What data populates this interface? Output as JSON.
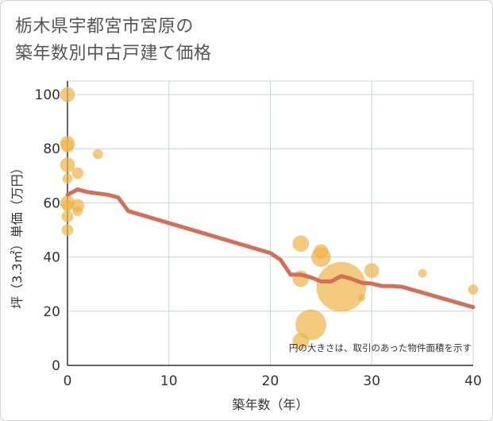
{
  "title_line1": "栃木県宇都宮市宮原の",
  "title_line2": "築年数別中古戸建て価格",
  "colors": {
    "bubble": "#f0b54e",
    "line": "#d4705a",
    "grid": "#c8d4dc",
    "text": "#333333",
    "title": "#555555"
  },
  "chart_data": {
    "type": "scatter",
    "title": "栃木県宇都宮市宮原の築年数別中古戸建て価格",
    "xlabel": "築年数（年）",
    "ylabel": "坪（3.3㎡）単価（万円）",
    "xlim": [
      0,
      40
    ],
    "ylim": [
      0,
      105
    ],
    "xticks": [
      0,
      10,
      20,
      30,
      40
    ],
    "yticks": [
      0,
      20,
      40,
      60,
      80,
      100
    ],
    "note": "円の大きさは、取引のあった物件面積を示す",
    "points": [
      {
        "x": 0,
        "y": 100,
        "size": 9
      },
      {
        "x": 0,
        "y": 82,
        "size": 9
      },
      {
        "x": 0,
        "y": 81,
        "size": 8
      },
      {
        "x": 0,
        "y": 74,
        "size": 9
      },
      {
        "x": 0,
        "y": 69,
        "size": 6
      },
      {
        "x": 0,
        "y": 60,
        "size": 9
      },
      {
        "x": 0,
        "y": 59,
        "size": 7
      },
      {
        "x": 0,
        "y": 55,
        "size": 7
      },
      {
        "x": 0,
        "y": 50,
        "size": 7
      },
      {
        "x": 1,
        "y": 71,
        "size": 7
      },
      {
        "x": 1,
        "y": 59,
        "size": 8
      },
      {
        "x": 1,
        "y": 57,
        "size": 6
      },
      {
        "x": 3,
        "y": 78,
        "size": 6
      },
      {
        "x": 23,
        "y": 45,
        "size": 10
      },
      {
        "x": 23,
        "y": 32,
        "size": 10
      },
      {
        "x": 23,
        "y": 9,
        "size": 10
      },
      {
        "x": 24,
        "y": 15,
        "size": 19
      },
      {
        "x": 25,
        "y": 42,
        "size": 9
      },
      {
        "x": 25,
        "y": 40,
        "size": 12
      },
      {
        "x": 27,
        "y": 29,
        "size": 31
      },
      {
        "x": 29,
        "y": 25,
        "size": 4
      },
      {
        "x": 30,
        "y": 35,
        "size": 9
      },
      {
        "x": 35,
        "y": 34,
        "size": 5
      },
      {
        "x": 40,
        "y": 28,
        "size": 6
      }
    ],
    "series": [
      {
        "name": "trend",
        "x": [
          0,
          1,
          2,
          3,
          4,
          5,
          6,
          20,
          21,
          22,
          23,
          24,
          25,
          26,
          27,
          28,
          29,
          30,
          31,
          32,
          33,
          40
        ],
        "y": [
          63,
          65,
          64,
          63.5,
          63,
          62,
          57,
          41.5,
          39,
          33.5,
          33.5,
          32.5,
          31,
          31,
          33,
          32,
          30.5,
          30.2,
          29.3,
          29.3,
          29,
          21.5
        ]
      }
    ]
  }
}
